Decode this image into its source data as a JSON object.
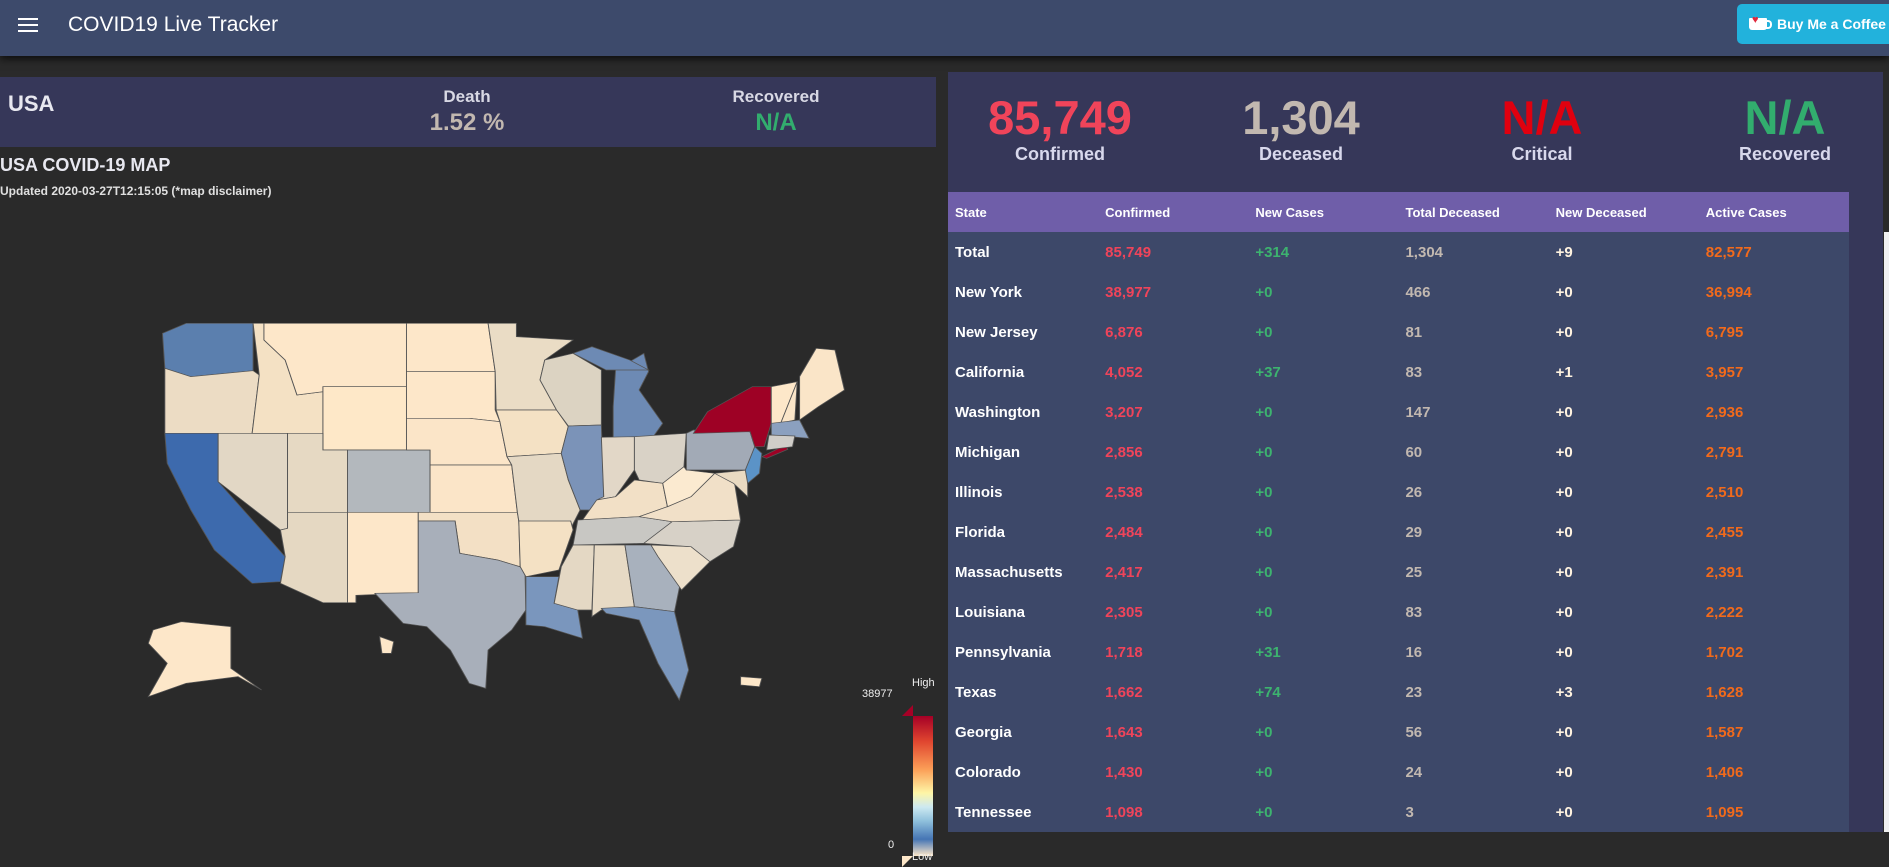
{
  "appbar": {
    "title": "COVID19 Live Tracker",
    "coffee_label": "Buy Me a Coffee"
  },
  "country": {
    "name": "USA",
    "death_label": "Death",
    "death_value": "1.52 %",
    "recovered_label": "Recovered",
    "recovered_value": "N/A"
  },
  "map": {
    "title": "USA COVID-19 MAP",
    "updated": "Updated 2020-03-27T12:15:05 (*map disclaimer)",
    "legend_high": "High",
    "legend_low": "Low",
    "legend_max": "38977",
    "legend_min": "0"
  },
  "summary": [
    {
      "value": "85,749",
      "label": "Confirmed",
      "color": "#f0445a"
    },
    {
      "value": "1,304",
      "label": "Deceased",
      "color": "#c2b8b0"
    },
    {
      "value": "N/A",
      "label": "Critical",
      "color": "#e0000f"
    },
    {
      "value": "N/A",
      "label": "Recovered",
      "color": "#32ad6e"
    }
  ],
  "table": {
    "headers": [
      "State",
      "Confirmed",
      "New Cases",
      "Total Deceased",
      "New Deceased",
      "Active Cases"
    ],
    "rows": [
      [
        "Total",
        "85,749",
        "+314",
        "1,304",
        "+9",
        "82,577"
      ],
      [
        "New York",
        "38,977",
        "+0",
        "466",
        "+0",
        "36,994"
      ],
      [
        "New Jersey",
        "6,876",
        "+0",
        "81",
        "+0",
        "6,795"
      ],
      [
        "California",
        "4,052",
        "+37",
        "83",
        "+1",
        "3,957"
      ],
      [
        "Washington",
        "3,207",
        "+0",
        "147",
        "+0",
        "2,936"
      ],
      [
        "Michigan",
        "2,856",
        "+0",
        "60",
        "+0",
        "2,791"
      ],
      [
        "Illinois",
        "2,538",
        "+0",
        "26",
        "+0",
        "2,510"
      ],
      [
        "Florida",
        "2,484",
        "+0",
        "29",
        "+0",
        "2,455"
      ],
      [
        "Massachusetts",
        "2,417",
        "+0",
        "25",
        "+0",
        "2,391"
      ],
      [
        "Louisiana",
        "2,305",
        "+0",
        "83",
        "+0",
        "2,222"
      ],
      [
        "Pennsylvania",
        "1,718",
        "+31",
        "16",
        "+0",
        "1,702"
      ],
      [
        "Texas",
        "1,662",
        "+74",
        "23",
        "+3",
        "1,628"
      ],
      [
        "Georgia",
        "1,643",
        "+0",
        "56",
        "+0",
        "1,587"
      ],
      [
        "Colorado",
        "1,430",
        "+0",
        "24",
        "+0",
        "1,406"
      ],
      [
        "Tennessee",
        "1,098",
        "+0",
        "3",
        "+0",
        "1,095"
      ]
    ]
  }
}
